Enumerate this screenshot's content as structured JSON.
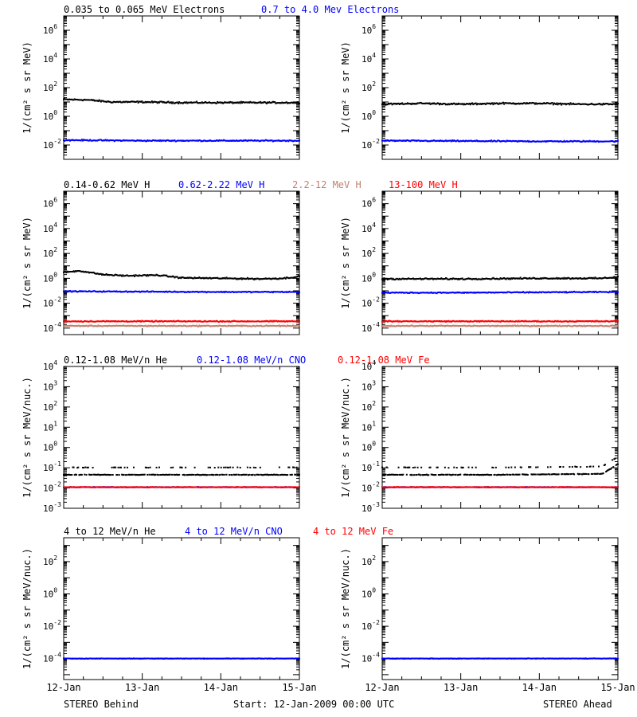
{
  "colors": {
    "axes": "#000000",
    "black": "#000000",
    "blue": "#0000ff",
    "salmon": "#c08070",
    "red": "#ff0000"
  },
  "footer": {
    "left": "STEREO Behind",
    "center": "Start: 12-Jan-2009 00:00 UTC",
    "right": "STEREO Ahead"
  },
  "chart_data": [
    {
      "type": "scatter",
      "panel": "electrons",
      "y_scale": "log",
      "ylim": [
        0.001,
        10000000
      ],
      "y_ticks": [
        {
          "exp": -2,
          "label": "10",
          "sup": "-2"
        },
        {
          "exp": 0,
          "label": "10",
          "sup": "0"
        },
        {
          "exp": 2,
          "label": "10",
          "sup": "2"
        },
        {
          "exp": 4,
          "label": "10",
          "sup": "4"
        },
        {
          "exp": 6,
          "label": "10",
          "sup": "6"
        }
      ],
      "ylabel": "1/(cm² s sr MeV)",
      "x_ticks": [
        "12-Jan",
        "13-Jan",
        "14-Jan",
        "15-Jan"
      ],
      "xlim_days": [
        0,
        3
      ],
      "legend": [
        {
          "text": "0.035 to 0.065 MeV Electrons",
          "color": "#000000"
        },
        {
          "text": "0.7 to 4.0 Mev Electrons",
          "color": "#0000ff"
        }
      ],
      "series": [
        {
          "name": "0.035 to 0.065 MeV Electrons",
          "color": "#000000",
          "behind": [
            [
              0.0,
              15
            ],
            [
              0.3,
              14
            ],
            [
              0.6,
              10
            ],
            [
              1.0,
              10
            ],
            [
              1.5,
              9
            ],
            [
              2.0,
              9
            ],
            [
              2.5,
              9
            ],
            [
              3.0,
              9
            ]
          ],
          "ahead": [
            [
              0.0,
              7
            ],
            [
              0.5,
              8
            ],
            [
              1.0,
              7
            ],
            [
              1.5,
              8
            ],
            [
              2.0,
              8
            ],
            [
              2.5,
              7
            ],
            [
              3.0,
              7
            ]
          ]
        },
        {
          "name": "0.7 to 4.0 Mev Electrons",
          "color": "#0000ff",
          "behind": [
            [
              0.0,
              0.022
            ],
            [
              1.0,
              0.02
            ],
            [
              2.0,
              0.02
            ],
            [
              3.0,
              0.02
            ]
          ],
          "ahead": [
            [
              0.0,
              0.02
            ],
            [
              1.0,
              0.019
            ],
            [
              2.0,
              0.018
            ],
            [
              3.0,
              0.018
            ]
          ]
        }
      ]
    },
    {
      "type": "scatter",
      "panel": "protons",
      "y_scale": "log",
      "ylim": [
        3e-05,
        10000000
      ],
      "y_ticks": [
        {
          "exp": -4,
          "label": "10",
          "sup": "-4"
        },
        {
          "exp": -2,
          "label": "10",
          "sup": "-2"
        },
        {
          "exp": 0,
          "label": "10",
          "sup": "0"
        },
        {
          "exp": 2,
          "label": "10",
          "sup": "2"
        },
        {
          "exp": 4,
          "label": "10",
          "sup": "4"
        },
        {
          "exp": 6,
          "label": "10",
          "sup": "6"
        }
      ],
      "ylabel": "1/(cm² s sr MeV)",
      "x_ticks": [
        "12-Jan",
        "13-Jan",
        "14-Jan",
        "15-Jan"
      ],
      "xlim_days": [
        0,
        3
      ],
      "legend": [
        {
          "text": "0.14-0.62 MeV H",
          "color": "#000000"
        },
        {
          "text": "0.62-2.22 MeV H",
          "color": "#0000ff"
        },
        {
          "text": "2.2-12 MeV H",
          "color": "#c08070"
        },
        {
          "text": "13-100 MeV H",
          "color": "#ff0000"
        }
      ],
      "series": [
        {
          "name": "0.14-0.62 MeV H",
          "color": "#000000",
          "behind": [
            [
              0.0,
              3
            ],
            [
              0.2,
              4
            ],
            [
              0.5,
              2
            ],
            [
              0.8,
              1.6
            ],
            [
              1.2,
              1.8
            ],
            [
              1.5,
              1.1
            ],
            [
              2.0,
              1.0
            ],
            [
              2.5,
              0.9
            ],
            [
              2.8,
              1.0
            ],
            [
              3.0,
              1.4
            ]
          ],
          "ahead": [
            [
              0.0,
              0.9
            ],
            [
              1.0,
              0.9
            ],
            [
              2.0,
              1.0
            ],
            [
              2.8,
              1.0
            ],
            [
              3.0,
              1.3
            ]
          ]
        },
        {
          "name": "0.62-2.22 MeV H",
          "color": "#0000ff",
          "behind": [
            [
              0.0,
              0.09
            ],
            [
              1.0,
              0.085
            ],
            [
              2.0,
              0.08
            ],
            [
              3.0,
              0.08
            ]
          ],
          "ahead": [
            [
              0.0,
              0.07
            ],
            [
              1.0,
              0.07
            ],
            [
              2.0,
              0.075
            ],
            [
              3.0,
              0.08
            ]
          ]
        },
        {
          "name": "2.2-12 MeV H",
          "color": "#c08070",
          "behind": [
            [
              0.0,
              0.00015
            ],
            [
              1.5,
              0.00015
            ],
            [
              3.0,
              0.00015
            ]
          ],
          "ahead": [
            [
              0.0,
              0.00015
            ],
            [
              1.5,
              0.00015
            ],
            [
              3.0,
              0.00015
            ]
          ]
        },
        {
          "name": "13-100 MeV H",
          "color": "#ff0000",
          "behind": [
            [
              0.0,
              0.00035
            ],
            [
              1.5,
              0.00035
            ],
            [
              3.0,
              0.00035
            ]
          ],
          "ahead": [
            [
              0.0,
              0.00035
            ],
            [
              1.5,
              0.00035
            ],
            [
              3.0,
              0.00035
            ]
          ]
        }
      ]
    },
    {
      "type": "scatter",
      "panel": "heavy-ions-low",
      "y_scale": "log",
      "ylim": [
        0.001,
        10000
      ],
      "y_ticks": [
        {
          "exp": -3,
          "label": "10",
          "sup": "-3"
        },
        {
          "exp": -2,
          "label": "10",
          "sup": "-2"
        },
        {
          "exp": -1,
          "label": "10",
          "sup": "-1"
        },
        {
          "exp": 0,
          "label": "10",
          "sup": "0"
        },
        {
          "exp": 1,
          "label": "10",
          "sup": "1"
        },
        {
          "exp": 2,
          "label": "10",
          "sup": "2"
        },
        {
          "exp": 3,
          "label": "10",
          "sup": "3"
        },
        {
          "exp": 4,
          "label": "10",
          "sup": "4"
        }
      ],
      "ylabel": "1/(cm² s sr MeV/nuc.)",
      "x_ticks": [
        "12-Jan",
        "13-Jan",
        "14-Jan",
        "15-Jan"
      ],
      "xlim_days": [
        0,
        3
      ],
      "legend": [
        {
          "text": "0.12-1.08 MeV/n He",
          "color": "#000000"
        },
        {
          "text": "0.12-1.08 MeV/n CNO",
          "color": "#0000ff"
        },
        {
          "text": "0.12-1.08 MeV Fe",
          "color": "#ff0000"
        }
      ],
      "series": [
        {
          "name": "0.12-1.08 MeV/n He",
          "color": "#000000",
          "behind": [
            [
              0.0,
              0.045
            ],
            [
              1.5,
              0.045
            ],
            [
              3.0,
              0.045
            ]
          ],
          "ahead": [
            [
              0.0,
              0.045
            ],
            [
              1.5,
              0.045
            ],
            [
              2.8,
              0.05
            ],
            [
              3.0,
              0.15
            ]
          ]
        },
        {
          "name": "0.12-1.08 MeV/n CNO",
          "color": "#0000ff",
          "behind": [
            [
              0.0,
              0.011
            ],
            [
              3.0,
              0.011
            ]
          ],
          "ahead": [
            [
              0.0,
              0.011
            ],
            [
              3.0,
              0.011
            ]
          ]
        },
        {
          "name": "0.12-1.08 MeV Fe",
          "color": "#ff0000",
          "behind": [
            [
              0.0,
              0.011
            ],
            [
              3.0,
              0.011
            ]
          ],
          "ahead": [
            [
              0.0,
              0.011
            ],
            [
              3.0,
              0.011
            ]
          ]
        }
      ]
    },
    {
      "type": "scatter",
      "panel": "heavy-ions-high",
      "y_scale": "log",
      "ylim": [
        5e-06,
        3000
      ],
      "y_ticks": [
        {
          "exp": -4,
          "label": "10",
          "sup": "-4"
        },
        {
          "exp": -2,
          "label": "10",
          "sup": "-2"
        },
        {
          "exp": 0,
          "label": "10",
          "sup": "0"
        },
        {
          "exp": 2,
          "label": "10",
          "sup": "2"
        }
      ],
      "ylabel": "1/(cm² s sr MeV/nuc.)",
      "x_ticks": [
        "12-Jan",
        "13-Jan",
        "14-Jan",
        "15-Jan"
      ],
      "xlim_days": [
        0,
        3
      ],
      "legend": [
        {
          "text": "4 to 12 MeV/n He",
          "color": "#000000"
        },
        {
          "text": "4 to 12 MeV/n CNO",
          "color": "#0000ff"
        },
        {
          "text": "4 to 12 MeV Fe",
          "color": "#ff0000"
        }
      ],
      "series": [
        {
          "name": "4 to 12 MeV/n He",
          "color": "#000000",
          "behind": [
            [
              0.0,
              0.0001
            ],
            [
              3.0,
              0.0001
            ]
          ],
          "ahead": [
            [
              0.0,
              0.0001
            ],
            [
              3.0,
              0.0001
            ]
          ]
        },
        {
          "name": "4 to 12 MeV/n CNO",
          "color": "#0000ff",
          "behind": [
            [
              0.0,
              0.0001
            ],
            [
              3.0,
              0.0001
            ]
          ],
          "ahead": [
            [
              0.0,
              0.0001
            ],
            [
              3.0,
              0.0001
            ]
          ]
        }
      ]
    }
  ]
}
